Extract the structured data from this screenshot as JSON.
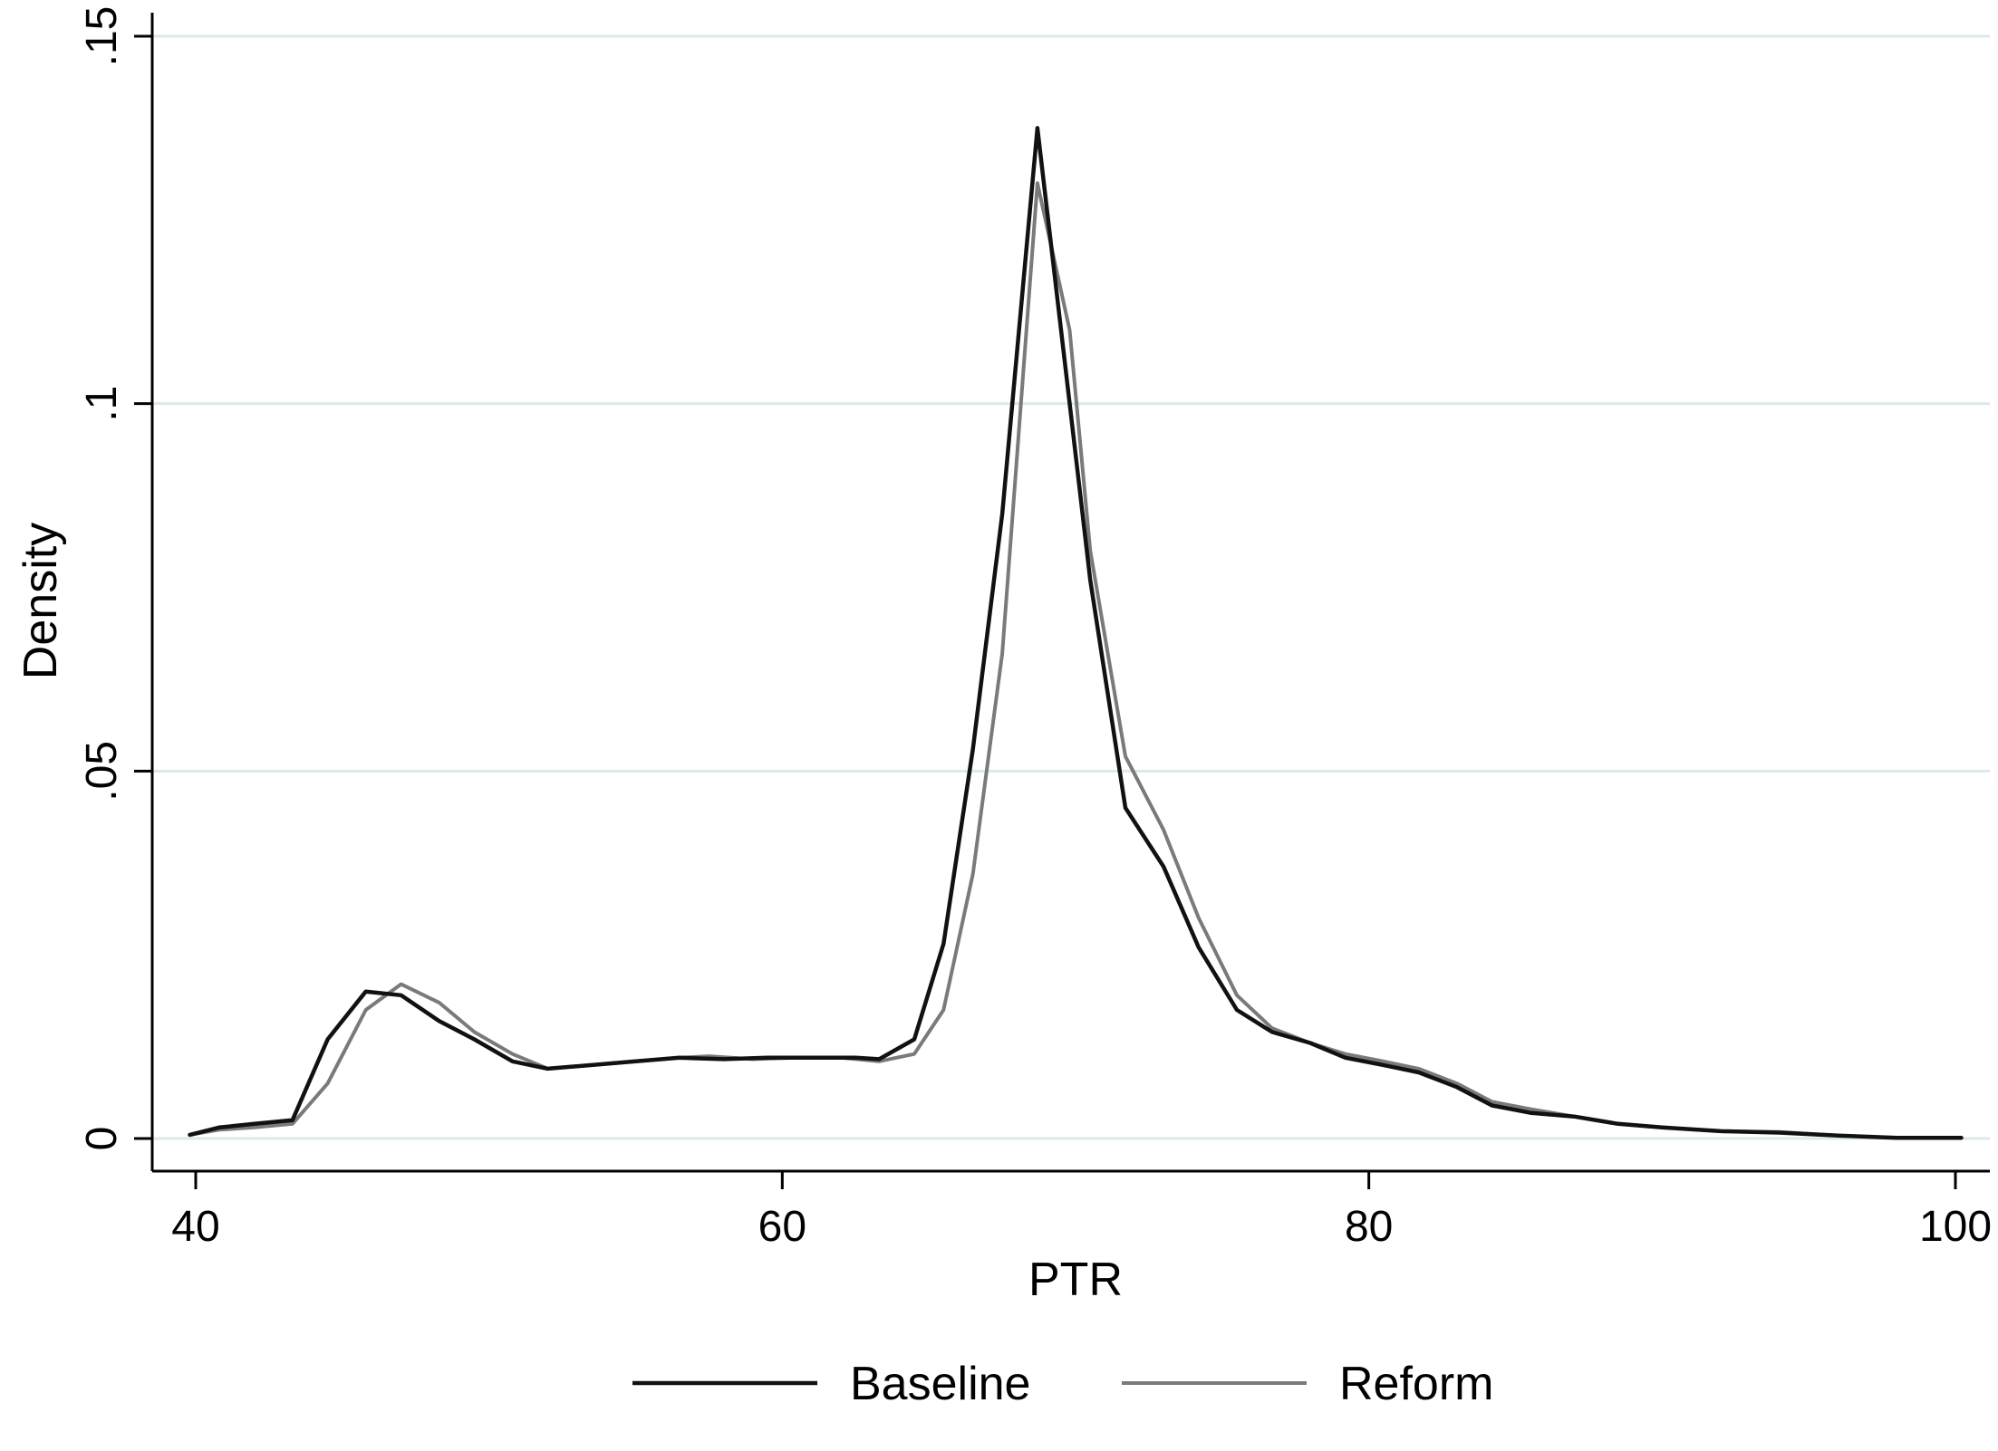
{
  "chart_data": {
    "type": "line",
    "xlabel": "PTR",
    "ylabel": "Density",
    "xlim": [
      39.5,
      100.5
    ],
    "ylim": [
      -0.004,
      0.153
    ],
    "xticks": [
      40,
      60,
      80,
      100
    ],
    "xtick_labels": [
      "40",
      "60",
      "80",
      "100"
    ],
    "yticks": [
      0,
      0.05,
      0.1,
      0.15
    ],
    "ytick_labels": [
      "0",
      ".05",
      ".1",
      ".15"
    ],
    "grid": "horizontal",
    "legend_position": "bottom",
    "series": [
      {
        "name": "Baseline",
        "color": "#111111",
        "points": [
          [
            39.8,
            0.0005
          ],
          [
            40.8,
            0.0015
          ],
          [
            42.0,
            0.002
          ],
          [
            43.3,
            0.0025
          ],
          [
            44.5,
            0.0135
          ],
          [
            45.8,
            0.02
          ],
          [
            47.0,
            0.0195
          ],
          [
            48.3,
            0.016
          ],
          [
            49.5,
            0.0135
          ],
          [
            50.8,
            0.0105
          ],
          [
            52.0,
            0.0095
          ],
          [
            53.5,
            0.01
          ],
          [
            55.0,
            0.0105
          ],
          [
            56.5,
            0.011
          ],
          [
            58.0,
            0.0108
          ],
          [
            59.5,
            0.011
          ],
          [
            61.0,
            0.011
          ],
          [
            62.5,
            0.011
          ],
          [
            63.3,
            0.0108
          ],
          [
            64.5,
            0.0135
          ],
          [
            65.5,
            0.0265
          ],
          [
            66.5,
            0.053
          ],
          [
            67.5,
            0.085
          ],
          [
            68.7,
            0.1375
          ],
          [
            69.8,
            0.1
          ],
          [
            70.5,
            0.076
          ],
          [
            71.7,
            0.045
          ],
          [
            73.0,
            0.037
          ],
          [
            74.2,
            0.026
          ],
          [
            75.5,
            0.0175
          ],
          [
            76.7,
            0.0145
          ],
          [
            78.0,
            0.013
          ],
          [
            79.2,
            0.011
          ],
          [
            80.5,
            0.01
          ],
          [
            81.7,
            0.009
          ],
          [
            83.0,
            0.007
          ],
          [
            84.2,
            0.0045
          ],
          [
            85.5,
            0.0035
          ],
          [
            87.0,
            0.003
          ],
          [
            88.5,
            0.002
          ],
          [
            90.0,
            0.0015
          ],
          [
            92.0,
            0.001
          ],
          [
            94.0,
            0.0008
          ],
          [
            96.0,
            0.0004
          ],
          [
            98.0,
            0.0001
          ],
          [
            100.2,
            0.0001
          ]
        ]
      },
      {
        "name": "Reform",
        "color": "#7a7a7a",
        "points": [
          [
            39.8,
            0.0005
          ],
          [
            40.8,
            0.0012
          ],
          [
            42.0,
            0.0015
          ],
          [
            43.3,
            0.002
          ],
          [
            44.5,
            0.0075
          ],
          [
            45.8,
            0.0175
          ],
          [
            47.0,
            0.021
          ],
          [
            48.3,
            0.0185
          ],
          [
            49.5,
            0.0145
          ],
          [
            50.8,
            0.0115
          ],
          [
            52.0,
            0.0095
          ],
          [
            53.5,
            0.01
          ],
          [
            55.0,
            0.0105
          ],
          [
            56.5,
            0.011
          ],
          [
            57.5,
            0.0112
          ],
          [
            59.0,
            0.0108
          ],
          [
            60.5,
            0.011
          ],
          [
            62.0,
            0.011
          ],
          [
            63.3,
            0.0105
          ],
          [
            64.5,
            0.0115
          ],
          [
            65.5,
            0.0175
          ],
          [
            66.5,
            0.036
          ],
          [
            67.5,
            0.066
          ],
          [
            68.7,
            0.13
          ],
          [
            69.8,
            0.11
          ],
          [
            70.5,
            0.08
          ],
          [
            71.7,
            0.052
          ],
          [
            73.0,
            0.042
          ],
          [
            74.2,
            0.03
          ],
          [
            75.5,
            0.0195
          ],
          [
            76.7,
            0.015
          ],
          [
            78.0,
            0.013
          ],
          [
            79.2,
            0.0115
          ],
          [
            80.5,
            0.0105
          ],
          [
            81.7,
            0.0095
          ],
          [
            83.0,
            0.0075
          ],
          [
            84.2,
            0.005
          ],
          [
            85.5,
            0.004
          ],
          [
            87.0,
            0.003
          ],
          [
            88.5,
            0.002
          ],
          [
            90.0,
            0.0015
          ],
          [
            92.0,
            0.001
          ],
          [
            94.0,
            0.0009
          ],
          [
            96.0,
            0.0004
          ],
          [
            98.0,
            0.0001
          ],
          [
            100.2,
            0.0001
          ]
        ]
      }
    ]
  }
}
